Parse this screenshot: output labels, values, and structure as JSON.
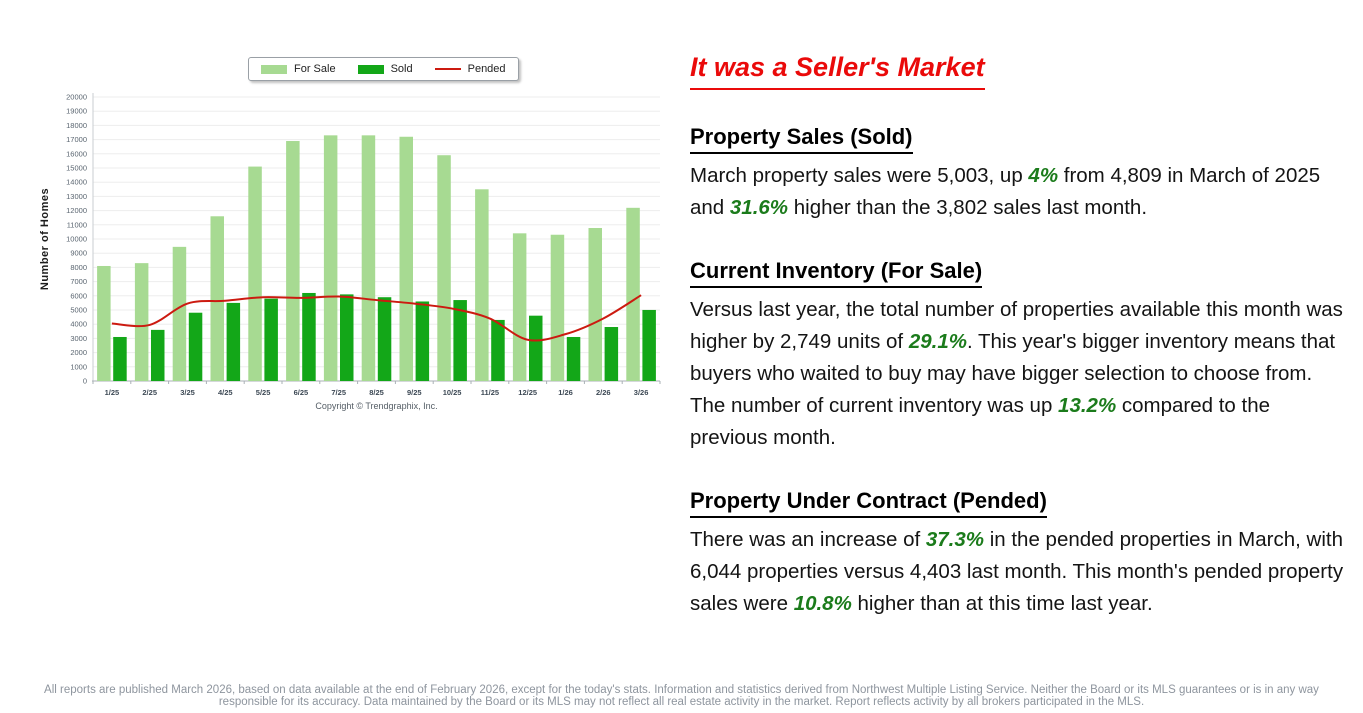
{
  "chart_data": {
    "type": "bar",
    "title": "",
    "xlabel": "",
    "ylabel": "Number of Homes",
    "caption": "Copyright © Trendgraphix, Inc.",
    "ylim": [
      0,
      20000
    ],
    "ytick_step": 1000,
    "grid": true,
    "legend_position": "top",
    "categories": [
      "1/25",
      "2/25",
      "3/25",
      "4/25",
      "5/25",
      "6/25",
      "7/25",
      "8/25",
      "9/25",
      "10/25",
      "11/25",
      "12/25",
      "1/26",
      "2/26",
      "3/26"
    ],
    "series": [
      {
        "name": "For Sale",
        "type": "bar",
        "color": "#a7da92",
        "values": [
          8100,
          8300,
          9447,
          11600,
          15100,
          16900,
          17300,
          17300,
          17200,
          15900,
          13500,
          10400,
          10300,
          10774,
          12196
        ]
      },
      {
        "name": "Sold",
        "type": "bar",
        "color": "#13a718",
        "values": [
          3100,
          3600,
          4809,
          5500,
          5800,
          6200,
          6100,
          5900,
          5600,
          5700,
          4300,
          4600,
          3100,
          3802,
          5003
        ]
      },
      {
        "name": "Pended",
        "type": "line",
        "color": "#cc1a10",
        "values": [
          4050,
          3950,
          5455,
          5650,
          5900,
          5850,
          5950,
          5700,
          5450,
          5100,
          4400,
          2900,
          3300,
          4403,
          6044
        ]
      }
    ]
  },
  "article": {
    "title": "It was a Seller's Market",
    "sections": [
      {
        "heading": "Property Sales (Sold)",
        "runs": [
          {
            "t": "March property sales were 5,003, up "
          },
          {
            "t": "4%",
            "em": true
          },
          {
            "t": " from 4,809 in March of 2025 and "
          },
          {
            "t": "31.6%",
            "em": true
          },
          {
            "t": " higher than the 3,802 sales last month."
          }
        ]
      },
      {
        "heading": "Current Inventory (For Sale)",
        "runs": [
          {
            "t": "Versus last year, the total number of properties available this month was higher by 2,749 units of "
          },
          {
            "t": "29.1%",
            "em": true
          },
          {
            "t": ". This year's bigger inventory means that buyers who waited to buy may have bigger selection to choose from. The number of current inventory was up "
          },
          {
            "t": "13.2%",
            "em": true
          },
          {
            "t": " compared to the previous month."
          }
        ]
      },
      {
        "heading": "Property Under Contract (Pended)",
        "runs": [
          {
            "t": "There was an increase of "
          },
          {
            "t": "37.3%",
            "em": true
          },
          {
            "t": " in the pended properties in March, with 6,044 properties versus 4,403 last month. This month's pended property sales were "
          },
          {
            "t": "10.8%",
            "em": true
          },
          {
            "t": " higher than at this time last year."
          }
        ]
      }
    ]
  },
  "footer": {
    "text": "All reports are published March 2026, based on data available at the end of February 2026, except for the today's stats. Information and statistics derived from Northwest Multiple Listing Service. Neither the Board or its MLS guarantees or is in any way responsible for its accuracy. Data maintained by the Board or its MLS may not reflect all real estate activity in the market. Report reflects activity by all brokers participated in the MLS."
  },
  "colors": {
    "title_red": "#ea0a0a",
    "emphasis_green": "#1b7b1b",
    "bar_for_sale": "#a7da92",
    "bar_sold": "#13a718",
    "line_pended": "#cc1a10",
    "footer_gray": "#8e959e"
  }
}
